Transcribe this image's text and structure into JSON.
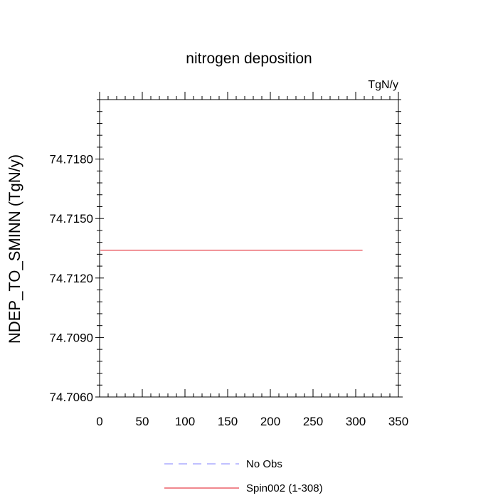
{
  "chart_data": {
    "type": "line",
    "title": "nitrogen deposition",
    "units_label": "TgN/y",
    "xlabel": "",
    "ylabel": "NDEP_TO_SMINN  (TgN/y)",
    "xlim": [
      0,
      350
    ],
    "ylim": [
      74.706,
      74.721
    ],
    "x_ticks": [
      0,
      50,
      100,
      150,
      200,
      250,
      300,
      350
    ],
    "x_tick_labels": [
      "0",
      "50",
      "100",
      "150",
      "200",
      "250",
      "300",
      "350"
    ],
    "y_ticks": [
      74.706,
      74.709,
      74.712,
      74.715,
      74.718
    ],
    "y_tick_labels": [
      "74.7060",
      "74.7090",
      "74.7120",
      "74.7150",
      "74.7180"
    ],
    "grid": false,
    "legend_placement": "bottom",
    "series": [
      {
        "name": "No Obs",
        "color": "#8080ff",
        "dash": "dashed",
        "x": [],
        "y": []
      },
      {
        "name": "Spin002 (1-308)",
        "color": "#e0101c",
        "dash": "solid",
        "x": [
          1,
          308
        ],
        "y": [
          74.7134,
          74.7134
        ]
      }
    ]
  }
}
